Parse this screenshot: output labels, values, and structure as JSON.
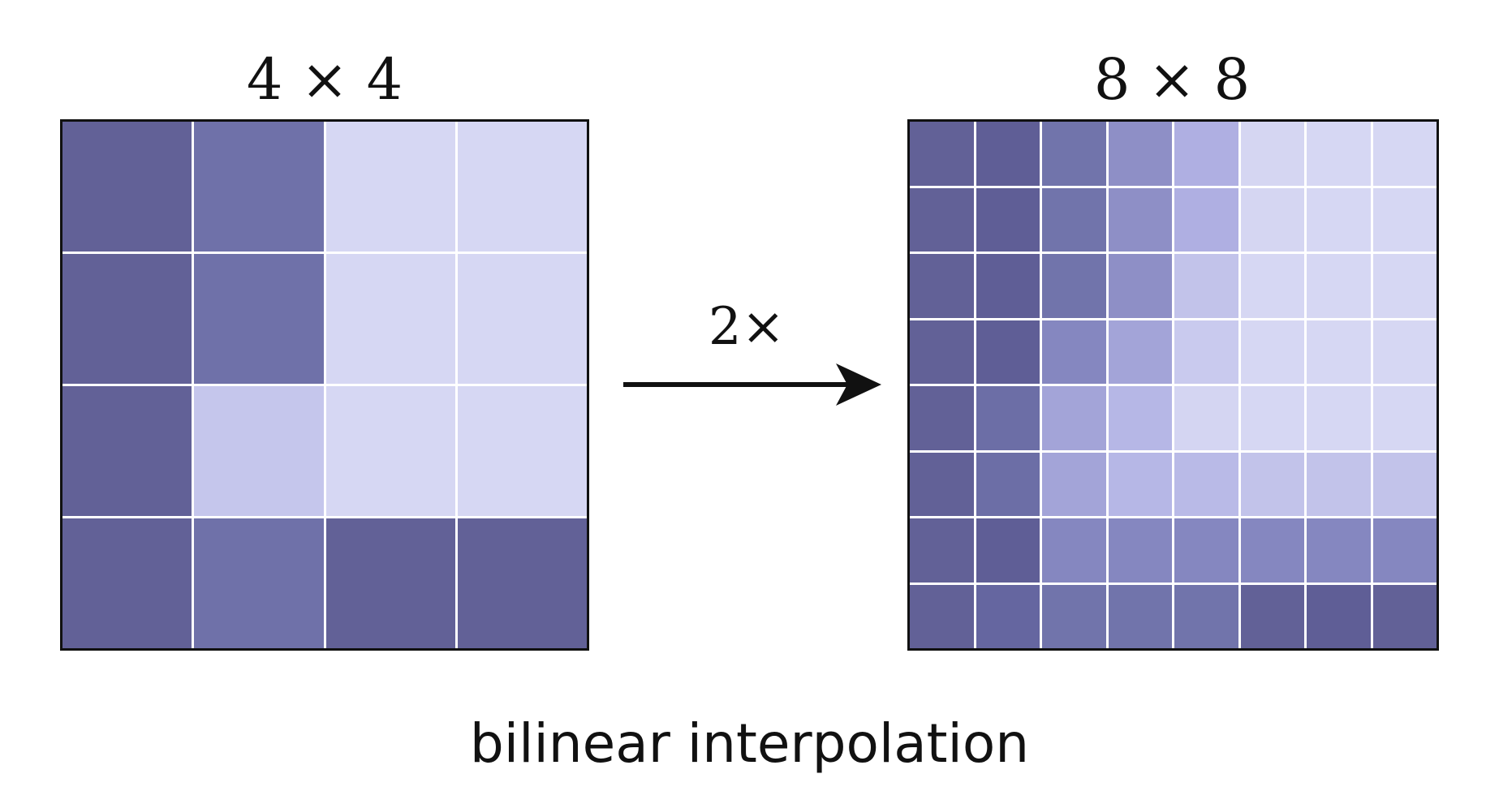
{
  "left_grid": {
    "title": "4 × 4",
    "cells": [
      [
        "#626197",
        "#6f71a9",
        "#d6d7f3",
        "#d6d7f3"
      ],
      [
        "#626197",
        "#6f71a9",
        "#d6d7f3",
        "#d6d7f3"
      ],
      [
        "#626197",
        "#c5c6ec",
        "#d6d7f3",
        "#d6d7f3"
      ],
      [
        "#626197",
        "#6f71a9",
        "#626197",
        "#626197"
      ]
    ]
  },
  "right_grid": {
    "title": "8 × 8",
    "cells": [
      [
        "#626197",
        "#5f5e96",
        "#7174ab",
        "#8e8fc6",
        "#afafe2",
        "#d5d6f2",
        "#d6d7f3",
        "#d6d7f3"
      ],
      [
        "#626197",
        "#5f5e96",
        "#7174ab",
        "#8e8fc6",
        "#afafe2",
        "#d5d6f2",
        "#d6d7f3",
        "#d6d7f3"
      ],
      [
        "#626197",
        "#5f5e96",
        "#7174ab",
        "#8e8fc6",
        "#c2c3ea",
        "#d6d7f3",
        "#d6d7f3",
        "#d6d7f3"
      ],
      [
        "#626197",
        "#5f5e96",
        "#8587c0",
        "#a3a4d8",
        "#c9caee",
        "#d6d7f3",
        "#d6d7f3",
        "#d6d7f3"
      ],
      [
        "#626197",
        "#6c6ea6",
        "#a3a4d8",
        "#b6b7e6",
        "#d4d5f2",
        "#d6d7f3",
        "#d6d7f3",
        "#d6d7f3"
      ],
      [
        "#626197",
        "#6c6ea6",
        "#a3a4d8",
        "#b6b7e6",
        "#b9bae7",
        "#c2c3ea",
        "#c2c3ea",
        "#c2c3ea"
      ],
      [
        "#626197",
        "#5f5e96",
        "#8587c0",
        "#8587c0",
        "#8587c0",
        "#8587c0",
        "#8587c0",
        "#8587c0"
      ],
      [
        "#626197",
        "#6566a0",
        "#7174ab",
        "#7174ab",
        "#7174ab",
        "#626197",
        "#5f5e96",
        "#626197"
      ]
    ]
  },
  "scale_label": "2×",
  "caption": "bilinear interpolation"
}
